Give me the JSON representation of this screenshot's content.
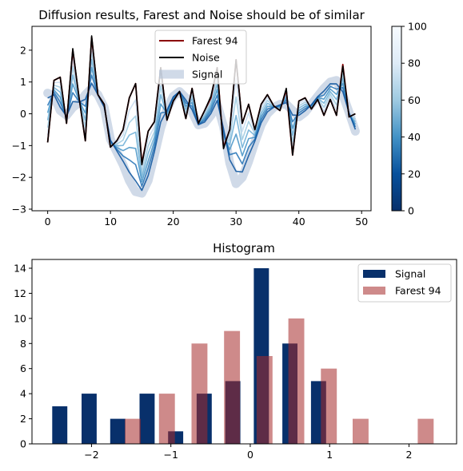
{
  "chart_data": [
    {
      "type": "line",
      "title": "Diffusion results, Farest and Noise should be of similar",
      "xlabel": "",
      "ylabel": "",
      "xlim": [
        -2.5,
        51.5
      ],
      "ylim": [
        -3.05,
        2.75
      ],
      "xticks": [
        "0",
        "10",
        "20",
        "30",
        "40",
        "50"
      ],
      "yticks": [
        "−3",
        "−2",
        "−1",
        "0",
        "1",
        "2"
      ],
      "legend": {
        "position": "upper-center",
        "entries": [
          "Farest 94",
          "Noise",
          "Signal"
        ]
      },
      "colors": {
        "farest": "#8b0000",
        "noise": "#000000",
        "signal": "#b0c1d8"
      },
      "x": [
        0,
        1,
        2,
        3,
        4,
        5,
        6,
        7,
        8,
        9,
        10,
        11,
        12,
        13,
        14,
        15,
        16,
        17,
        18,
        19,
        20,
        21,
        22,
        23,
        24,
        25,
        26,
        27,
        28,
        29,
        30,
        31,
        32,
        33,
        34,
        35,
        36,
        37,
        38,
        39,
        40,
        41,
        42,
        43,
        44,
        45,
        46,
        47,
        48,
        49
      ],
      "series": [
        {
          "name": "Signal",
          "values": [
            0.65,
            0.55,
            0.1,
            -0.05,
            0.2,
            0.35,
            0.6,
            0.8,
            0.6,
            0.2,
            -0.8,
            -1.2,
            -1.6,
            -2.1,
            -2.45,
            -2.5,
            -2.1,
            -1.3,
            -0.45,
            0.15,
            0.55,
            0.7,
            0.5,
            0.05,
            -0.35,
            -0.3,
            -0.05,
            0.3,
            -0.4,
            -1.55,
            -2.2,
            -2.0,
            -1.5,
            -0.9,
            -0.35,
            0.0,
            0.2,
            0.3,
            0.3,
            0.1,
            -0.1,
            0.05,
            0.3,
            0.55,
            0.8,
            1.0,
            1.05,
            0.6,
            0.05,
            -0.55
          ]
        },
        {
          "name": "Farest 94",
          "values": [
            -0.9,
            1.05,
            1.15,
            -0.3,
            2.0,
            0.5,
            -0.85,
            2.4,
            0.6,
            0.3,
            -1.05,
            -0.85,
            -0.5,
            0.5,
            0.95,
            -1.55,
            -0.55,
            -0.25,
            1.45,
            -0.2,
            0.4,
            0.7,
            -0.15,
            0.8,
            -0.3,
            0.1,
            0.5,
            1.45,
            -1.05,
            -0.5,
            1.7,
            -0.3,
            0.3,
            -0.5,
            0.3,
            0.6,
            0.25,
            0.1,
            0.75,
            -1.3,
            0.4,
            0.5,
            0.15,
            0.45,
            -0.05,
            0.45,
            -0.05,
            1.55,
            -0.1,
            0.0
          ]
        },
        {
          "name": "Noise",
          "values": [
            -0.9,
            1.05,
            1.15,
            -0.3,
            2.05,
            0.5,
            -0.85,
            2.45,
            0.6,
            0.3,
            -1.05,
            -0.85,
            -0.5,
            0.5,
            0.95,
            -1.6,
            -0.55,
            -0.25,
            1.45,
            -0.2,
            0.4,
            0.7,
            -0.15,
            0.8,
            -0.3,
            0.1,
            0.55,
            1.45,
            -1.1,
            -0.5,
            1.7,
            -0.3,
            0.3,
            -0.5,
            0.3,
            0.6,
            0.25,
            0.1,
            0.8,
            -1.3,
            0.4,
            0.5,
            0.15,
            0.45,
            -0.05,
            0.45,
            -0.05,
            1.5,
            -0.1,
            0.0
          ]
        }
      ],
      "colorbar": {
        "range": [
          0,
          100
        ],
        "ticks": [
          "0",
          "20",
          "40",
          "60",
          "80",
          "100"
        ],
        "colormap": "Blues_r"
      }
    },
    {
      "type": "bar",
      "title": "Histogram",
      "xlabel": "",
      "ylabel": "",
      "xlim": [
        -2.75,
        2.6
      ],
      "ylim": [
        0,
        14.7
      ],
      "xticks": [
        "−2",
        "−1",
        "0",
        "1",
        "2"
      ],
      "yticks": [
        "0",
        "2",
        "4",
        "6",
        "8",
        "10",
        "12",
        "14"
      ],
      "legend": {
        "position": "top-right",
        "entries": [
          "Signal",
          "Farest 94"
        ]
      },
      "series": [
        {
          "name": "Signal",
          "color": "#08306b",
          "opacity": 1.0,
          "bar_width": 0.19,
          "x": [
            -2.4,
            -2.03,
            -1.67,
            -1.3,
            -0.94,
            -0.58,
            -0.22,
            0.14,
            0.5,
            0.86
          ],
          "values": [
            3,
            4,
            2,
            4,
            1,
            4,
            5,
            14,
            8,
            5
          ]
        },
        {
          "name": "Farest 94",
          "color": "#a52a2a",
          "opacity": 0.55,
          "bar_width": 0.2,
          "x": [
            -1.48,
            -1.05,
            -0.64,
            -0.23,
            0.18,
            0.58,
            0.99,
            1.39,
            2.21
          ],
          "values": [
            2,
            4,
            8,
            9,
            7,
            10,
            6,
            2,
            2
          ]
        }
      ]
    }
  ]
}
